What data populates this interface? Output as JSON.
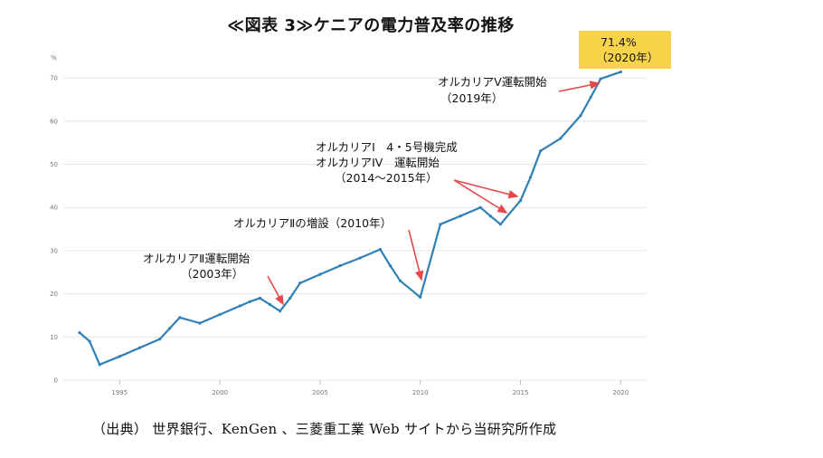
{
  "title": "≪図表 3≫ケニアの電力普及率の推移",
  "source_note": "（出典） 世界銀行、KenGen 、三菱重工業 Web サイトから当研究所作成",
  "colors": {
    "line": "#2e80b6",
    "arrow": "#e8474a",
    "callout_bg": "#f9d44b",
    "grid": "#e6e6e6",
    "tick": "#777777"
  },
  "chart_data": {
    "type": "line",
    "title": "≪図表 3≫ケニアの電力普及率の推移",
    "ylabel": "%",
    "xlabel": "",
    "xlim": [
      1993,
      2021
    ],
    "ylim": [
      0,
      75
    ],
    "grid": true,
    "legend": "none",
    "x_ticks": [
      "1995",
      "2000",
      "2005",
      "2010",
      "2015",
      "2020"
    ],
    "y_ticks": [
      "0",
      "10",
      "20",
      "30",
      "40",
      "50",
      "60",
      "70"
    ],
    "series": [
      {
        "x": [
          1993,
          1993.5,
          1994,
          1995,
          1996,
          1997,
          1997.5,
          1998,
          1999,
          2000,
          2001,
          2001.5,
          2002,
          2002.5,
          2003,
          2003.5,
          2004,
          2005,
          2006,
          2007,
          2008,
          2008.5,
          2009,
          2010,
          2011,
          2012,
          2013,
          2013.5,
          2014,
          2015,
          2015.5,
          2016,
          2017,
          2018,
          2018.5,
          2019,
          2020
        ],
        "values": [
          11,
          9,
          3.6,
          5.5,
          7.5,
          9.5,
          12,
          14.5,
          13.2,
          15.2,
          17.2,
          18.2,
          19,
          17.5,
          16,
          19,
          22.5,
          24.5,
          26.5,
          28.3,
          30.3,
          26.5,
          23,
          19.2,
          36.1,
          38,
          40,
          38,
          36.1,
          41.6,
          47,
          53.1,
          56,
          61.3,
          65.5,
          69.8,
          71.4
        ]
      }
    ],
    "annotations": [
      {
        "lines": [
          "71.4%",
          "（2020年）"
        ],
        "style": "callout"
      },
      {
        "lines": [
          "オルカリアV運転開始",
          "（2019年）"
        ]
      },
      {
        "lines": [
          "オルカリアI　4・5号機完成",
          "オルカリアIV　運転開始",
          "（2014～2015年）"
        ]
      },
      {
        "lines": [
          "オルカリアⅡの増設（2010年）"
        ]
      },
      {
        "lines": [
          "オルカリアⅡ運転開始",
          "（2003年）"
        ]
      }
    ]
  }
}
